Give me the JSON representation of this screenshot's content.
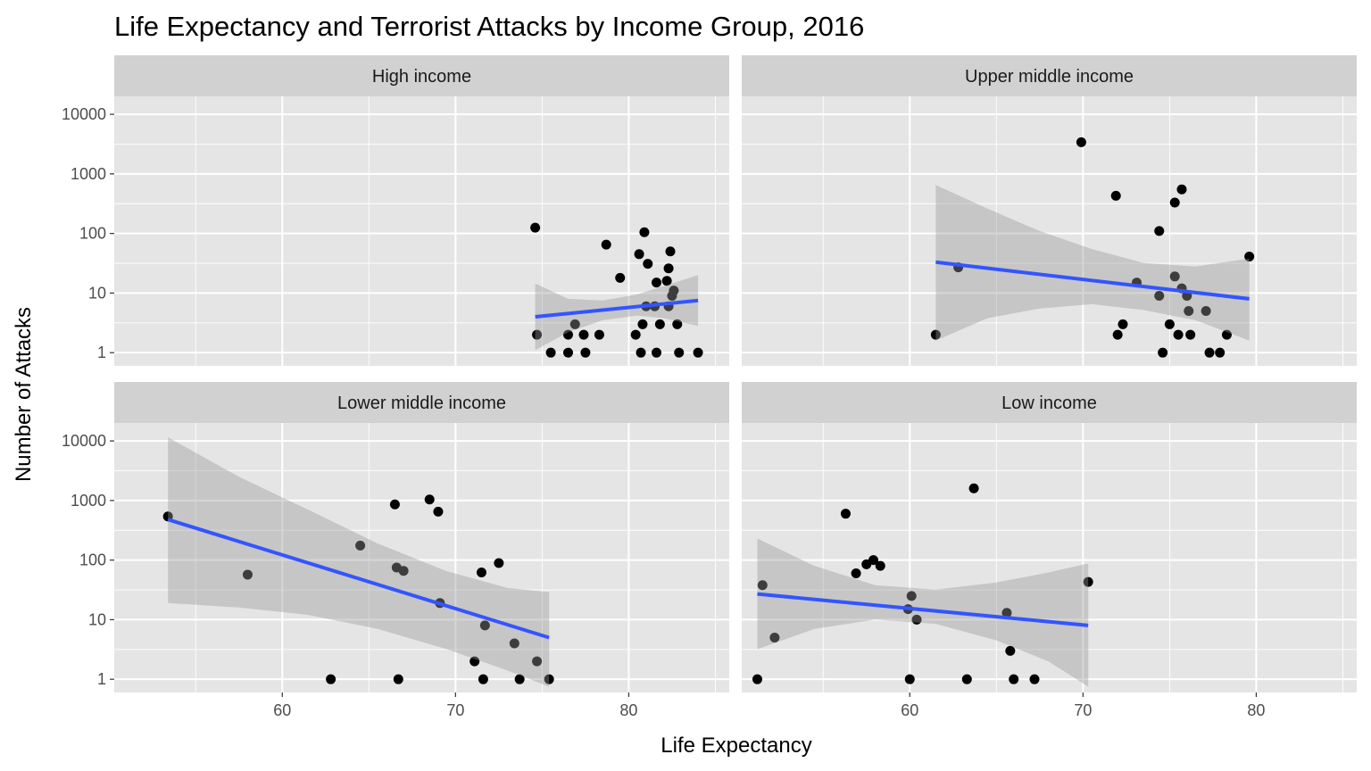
{
  "chart_data": {
    "type": "scatter",
    "title": "Life Expectancy and Terrorist Attacks by Income Group, 2016",
    "xlabel": "Life Expectancy",
    "ylabel": "Number of Attacks",
    "xlim": [
      50.3,
      85.8
    ],
    "x_ticks": [
      60,
      70,
      80
    ],
    "y_scale": "log10",
    "ylim": [
      0.6,
      20000
    ],
    "y_ticks": [
      1,
      10,
      100,
      1000,
      10000
    ],
    "y_tick_labels": [
      "1",
      "10",
      "100",
      "1000",
      "10000"
    ],
    "grid": true,
    "facet_layout": "2x2",
    "colors": {
      "panel_bg": "#E5E5E5",
      "strip_bg": "#D1D1D1",
      "grid": "#FFFFFF",
      "points": "#000000",
      "fit_line": "#3355FF",
      "ribbon": "#999999"
    },
    "panels": [
      {
        "label": "High income",
        "points": [
          {
            "x": 74.6,
            "y": 125
          },
          {
            "x": 74.7,
            "y": 2
          },
          {
            "x": 75.5,
            "y": 1
          },
          {
            "x": 76.5,
            "y": 2
          },
          {
            "x": 76.5,
            "y": 1
          },
          {
            "x": 76.9,
            "y": 3
          },
          {
            "x": 77.4,
            "y": 2
          },
          {
            "x": 77.5,
            "y": 1
          },
          {
            "x": 78.3,
            "y": 2
          },
          {
            "x": 78.7,
            "y": 65
          },
          {
            "x": 79.5,
            "y": 18
          },
          {
            "x": 80.4,
            "y": 2
          },
          {
            "x": 80.6,
            "y": 45
          },
          {
            "x": 80.7,
            "y": 1
          },
          {
            "x": 80.8,
            "y": 3
          },
          {
            "x": 80.9,
            "y": 105
          },
          {
            "x": 81.0,
            "y": 6
          },
          {
            "x": 81.1,
            "y": 31
          },
          {
            "x": 81.5,
            "y": 6
          },
          {
            "x": 81.6,
            "y": 1
          },
          {
            "x": 81.6,
            "y": 15
          },
          {
            "x": 81.8,
            "y": 3
          },
          {
            "x": 82.2,
            "y": 16
          },
          {
            "x": 82.3,
            "y": 26
          },
          {
            "x": 82.3,
            "y": 6
          },
          {
            "x": 82.4,
            "y": 50
          },
          {
            "x": 82.5,
            "y": 9
          },
          {
            "x": 82.6,
            "y": 11
          },
          {
            "x": 82.8,
            "y": 3
          },
          {
            "x": 82.9,
            "y": 1
          },
          {
            "x": 84.0,
            "y": 1
          }
        ],
        "fit": {
          "x": [
            74.6,
            84.0
          ],
          "y": [
            4,
            7.5
          ]
        },
        "ribbon": {
          "x": [
            74.6,
            76.5,
            78.5,
            80.5,
            82.0,
            84.0
          ],
          "lower": [
            1.1,
            2.2,
            3.5,
            4.2,
            3.8,
            2.8
          ],
          "upper": [
            14.5,
            8.0,
            7.5,
            9.5,
            13,
            20
          ]
        }
      },
      {
        "label": "Upper middle income",
        "points": [
          {
            "x": 61.5,
            "y": 2
          },
          {
            "x": 62.8,
            "y": 27
          },
          {
            "x": 69.9,
            "y": 3400
          },
          {
            "x": 71.9,
            "y": 430
          },
          {
            "x": 72.0,
            "y": 2
          },
          {
            "x": 72.3,
            "y": 3
          },
          {
            "x": 73.1,
            "y": 15
          },
          {
            "x": 74.4,
            "y": 9
          },
          {
            "x": 74.4,
            "y": 110
          },
          {
            "x": 74.6,
            "y": 1
          },
          {
            "x": 75.0,
            "y": 3
          },
          {
            "x": 75.3,
            "y": 19
          },
          {
            "x": 75.3,
            "y": 330
          },
          {
            "x": 75.5,
            "y": 2
          },
          {
            "x": 75.7,
            "y": 12
          },
          {
            "x": 75.7,
            "y": 550
          },
          {
            "x": 76.0,
            "y": 9
          },
          {
            "x": 76.1,
            "y": 5
          },
          {
            "x": 76.2,
            "y": 2
          },
          {
            "x": 77.1,
            "y": 5
          },
          {
            "x": 77.3,
            "y": 1
          },
          {
            "x": 77.9,
            "y": 1
          },
          {
            "x": 78.3,
            "y": 2
          },
          {
            "x": 79.6,
            "y": 41
          }
        ],
        "fit": {
          "x": [
            61.5,
            79.6
          ],
          "y": [
            33,
            8
          ]
        },
        "ribbon": {
          "x": [
            61.5,
            64.5,
            67.5,
            70.5,
            73.5,
            76.5,
            79.6
          ],
          "lower": [
            1.6,
            3.8,
            5.5,
            6.5,
            5.2,
            3.5,
            1.6
          ],
          "upper": [
            650,
            260,
            110,
            55,
            32,
            28,
            38
          ]
        }
      },
      {
        "label": "Lower middle income",
        "points": [
          {
            "x": 53.4,
            "y": 540
          },
          {
            "x": 58.0,
            "y": 57
          },
          {
            "x": 62.8,
            "y": 1
          },
          {
            "x": 64.5,
            "y": 175
          },
          {
            "x": 66.5,
            "y": 860
          },
          {
            "x": 66.6,
            "y": 75
          },
          {
            "x": 66.7,
            "y": 1
          },
          {
            "x": 67.0,
            "y": 66
          },
          {
            "x": 68.5,
            "y": 1040
          },
          {
            "x": 69.0,
            "y": 650
          },
          {
            "x": 69.1,
            "y": 19
          },
          {
            "x": 71.1,
            "y": 2
          },
          {
            "x": 71.5,
            "y": 62
          },
          {
            "x": 71.6,
            "y": 1
          },
          {
            "x": 71.7,
            "y": 8
          },
          {
            "x": 72.5,
            "y": 89
          },
          {
            "x": 73.4,
            "y": 4
          },
          {
            "x": 73.7,
            "y": 1
          },
          {
            "x": 74.7,
            "y": 2
          },
          {
            "x": 75.4,
            "y": 1
          }
        ],
        "fit": {
          "x": [
            53.4,
            75.4
          ],
          "y": [
            480,
            5
          ]
        },
        "ribbon": {
          "x": [
            53.4,
            57.5,
            61.5,
            65.5,
            69.5,
            73.0,
            75.4
          ],
          "lower": [
            19,
            16,
            12,
            7,
            3.2,
            1.4,
            0.75
          ],
          "upper": [
            11500,
            2500,
            700,
            190,
            65,
            34,
            29
          ]
        }
      },
      {
        "label": "Low income",
        "points": [
          {
            "x": 51.2,
            "y": 1
          },
          {
            "x": 51.5,
            "y": 38
          },
          {
            "x": 52.2,
            "y": 5
          },
          {
            "x": 56.3,
            "y": 600
          },
          {
            "x": 56.9,
            "y": 60
          },
          {
            "x": 57.5,
            "y": 85
          },
          {
            "x": 57.9,
            "y": 100
          },
          {
            "x": 58.3,
            "y": 80
          },
          {
            "x": 59.9,
            "y": 15
          },
          {
            "x": 60.0,
            "y": 1
          },
          {
            "x": 60.1,
            "y": 25
          },
          {
            "x": 60.4,
            "y": 10
          },
          {
            "x": 63.3,
            "y": 1
          },
          {
            "x": 63.7,
            "y": 1600
          },
          {
            "x": 65.6,
            "y": 13
          },
          {
            "x": 65.8,
            "y": 3
          },
          {
            "x": 66.0,
            "y": 1
          },
          {
            "x": 67.2,
            "y": 1
          },
          {
            "x": 70.3,
            "y": 43
          }
        ],
        "fit": {
          "x": [
            51.2,
            70.3
          ],
          "y": [
            27,
            8
          ]
        },
        "ribbon": {
          "x": [
            51.2,
            54.5,
            58.0,
            61.5,
            65.0,
            68.0,
            70.3
          ],
          "lower": [
            3.2,
            7,
            10,
            8.5,
            4.5,
            2,
            0.75
          ],
          "upper": [
            230,
            80,
            38,
            32,
            42,
            62,
            88
          ]
        }
      }
    ]
  }
}
